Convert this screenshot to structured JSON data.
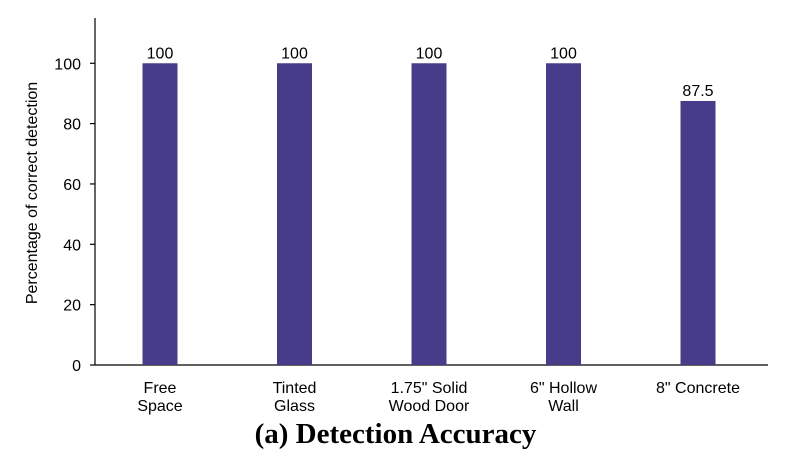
{
  "chart_data": {
    "type": "bar",
    "categories": [
      [
        "Free",
        "Space"
      ],
      [
        "Tinted",
        "Glass"
      ],
      [
        "1.75\" Solid",
        "Wood Door"
      ],
      [
        "6\" Hollow",
        "Wall"
      ],
      [
        "8\" Concrete"
      ]
    ],
    "values": [
      100,
      100,
      100,
      100,
      87.5
    ],
    "data_labels": [
      "100",
      "100",
      "100",
      "100",
      "87.5"
    ],
    "ylabel": "Percentage of correct detection",
    "xlabel": "",
    "ylim": [
      0,
      115
    ],
    "yticks": [
      0,
      20,
      40,
      60,
      80,
      100
    ],
    "bar_color": "#463c8a",
    "grid": false,
    "caption": "(a) Detection Accuracy"
  }
}
